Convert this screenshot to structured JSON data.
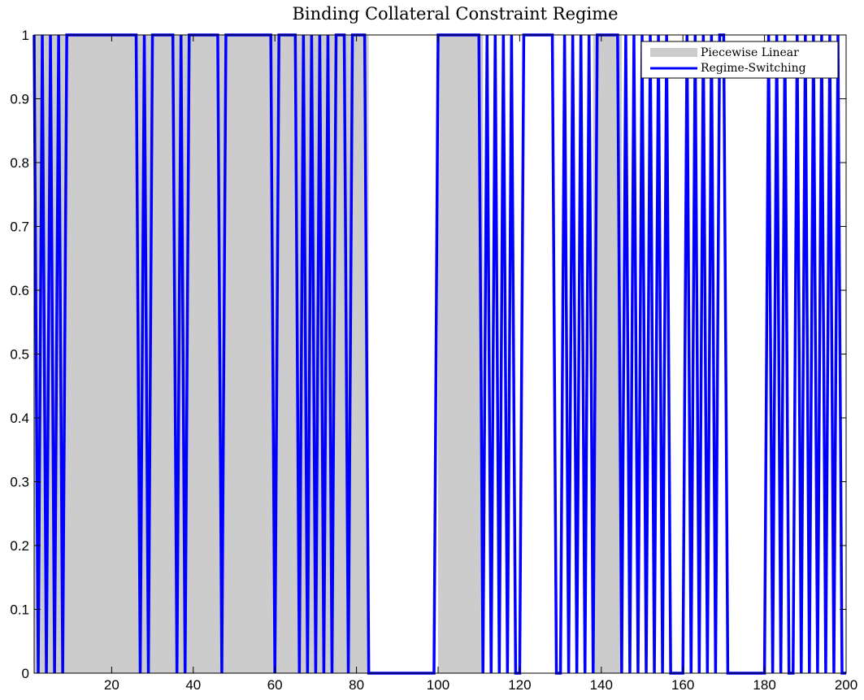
{
  "chart_data": {
    "type": "area",
    "title": "Binding Collateral Constraint Regime",
    "xlabel": "",
    "ylabel": "",
    "xlim": [
      1,
      200
    ],
    "ylim": [
      0,
      1
    ],
    "xticks": [
      20,
      40,
      60,
      80,
      100,
      120,
      140,
      160,
      180,
      200
    ],
    "yticks": [
      0,
      0.1,
      0.2,
      0.3,
      0.4,
      0.5,
      0.6,
      0.7,
      0.8,
      0.9,
      1
    ],
    "legend_position": "top-right",
    "series": [
      {
        "name": "Piecewise Linear",
        "type": "area",
        "color": "#cccccc",
        "binding_intervals": [
          [
            1,
            83
          ],
          [
            100,
            111
          ],
          [
            138,
            145
          ]
        ]
      },
      {
        "name": "Regime-Switching",
        "type": "line",
        "color": "#0000ff",
        "one_intervals": [
          [
            1,
            1
          ],
          [
            3,
            3
          ],
          [
            5,
            5
          ],
          [
            7,
            7
          ],
          [
            9,
            26
          ],
          [
            28,
            28
          ],
          [
            30,
            35
          ],
          [
            37,
            37
          ],
          [
            39,
            46
          ],
          [
            48,
            59
          ],
          [
            61,
            65
          ],
          [
            67,
            67
          ],
          [
            69,
            69
          ],
          [
            71,
            71
          ],
          [
            73,
            73
          ],
          [
            75,
            77
          ],
          [
            79,
            81
          ],
          [
            82,
            82
          ],
          [
            100,
            110
          ],
          [
            112,
            112
          ],
          [
            114,
            114
          ],
          [
            116,
            116
          ],
          [
            118,
            118
          ],
          [
            121,
            128
          ],
          [
            131,
            131
          ],
          [
            133,
            133
          ],
          [
            135,
            135
          ],
          [
            137,
            137
          ],
          [
            139,
            144
          ],
          [
            146,
            146
          ],
          [
            148,
            148
          ],
          [
            150,
            150
          ],
          [
            152,
            152
          ],
          [
            154,
            154
          ],
          [
            156,
            156
          ],
          [
            161,
            161
          ],
          [
            163,
            163
          ],
          [
            165,
            165
          ],
          [
            167,
            167
          ],
          [
            169,
            170
          ],
          [
            181,
            181
          ],
          [
            183,
            183
          ],
          [
            185,
            185
          ],
          [
            188,
            188
          ],
          [
            190,
            190
          ],
          [
            192,
            192
          ],
          [
            194,
            194
          ],
          [
            196,
            196
          ],
          [
            198,
            198
          ]
        ]
      }
    ]
  }
}
